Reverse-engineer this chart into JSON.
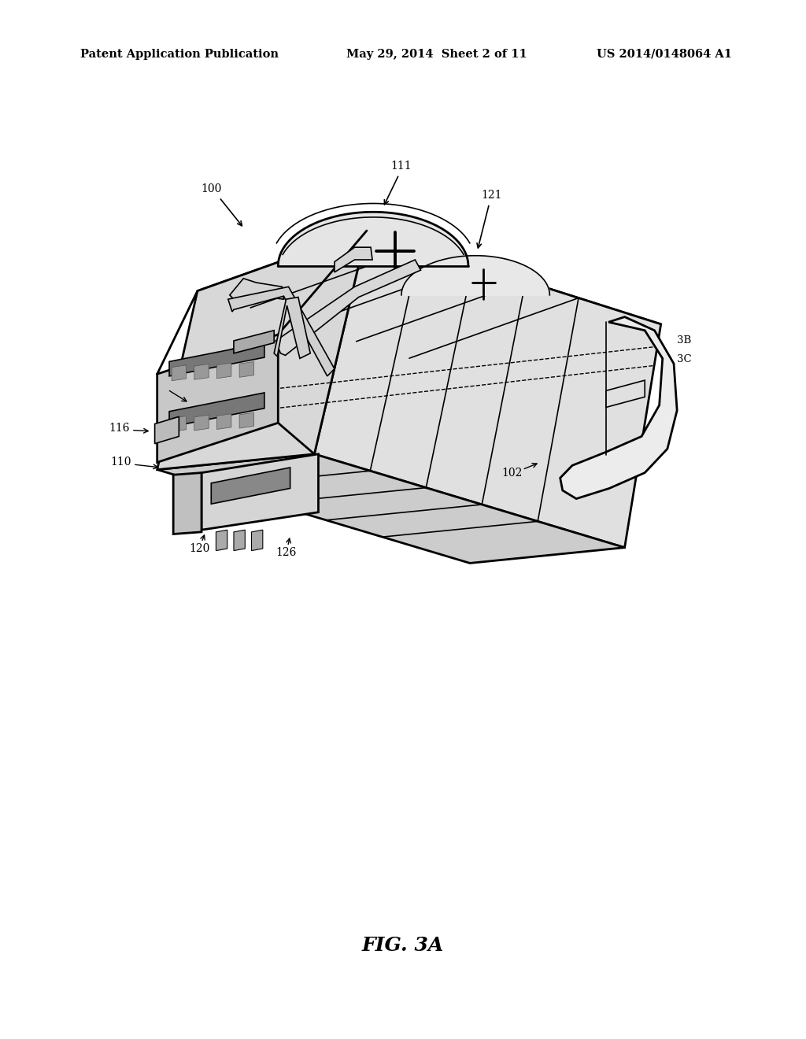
{
  "bg_color": "#ffffff",
  "line_color": "#000000",
  "header_left": "Patent Application Publication",
  "header_center": "May 29, 2014  Sheet 2 of 11",
  "header_right": "US 2014/0148064 A1",
  "figure_label": "FIG. 3A"
}
